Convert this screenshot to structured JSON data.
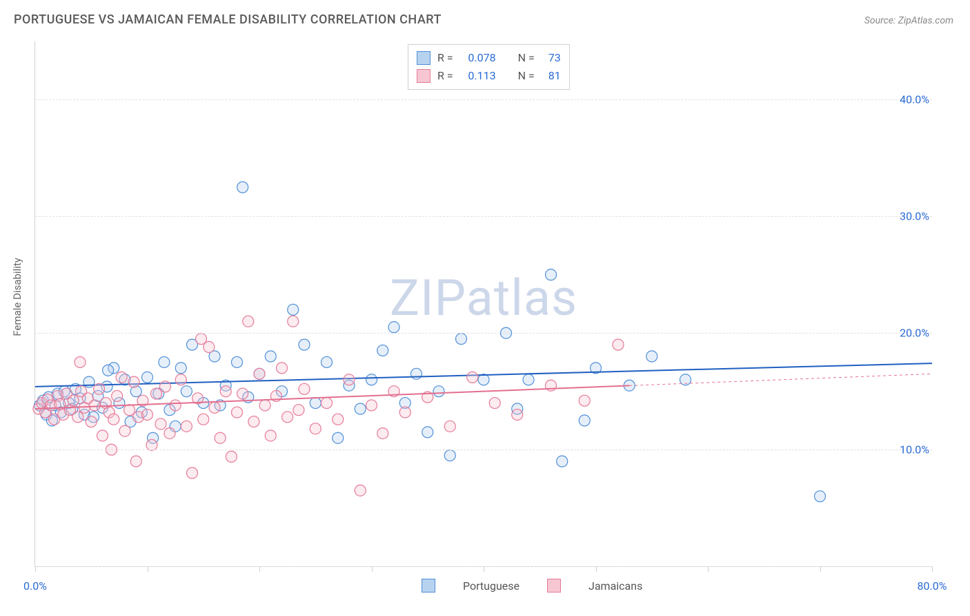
{
  "title": "PORTUGUESE VS JAMAICAN FEMALE DISABILITY CORRELATION CHART",
  "source_prefix": "Source: ",
  "source_name": "ZipAtlas.com",
  "watermark": "ZIPatlas",
  "ylabel": "Female Disability",
  "chart": {
    "type": "scatter",
    "background_color": "#ffffff",
    "grid_color": "#e2e2e2",
    "axis_color": "#d0d0d0",
    "tick_label_color": "#2a6ad6",
    "text_color": "#555555",
    "xlim": [
      0,
      80
    ],
    "ylim": [
      0,
      45
    ],
    "x_ticks": [
      0,
      10,
      20,
      30,
      40,
      50,
      60,
      70,
      80
    ],
    "x_tick_labels": {
      "0": "0.0%",
      "80": "80.0%"
    },
    "y_gridlines": [
      0,
      10,
      20,
      30,
      40
    ],
    "y_tick_labels": {
      "10": "10.0%",
      "20": "20.0%",
      "30": "30.0%",
      "40": "40.0%"
    },
    "marker_radius": 8,
    "line_width": 2,
    "series": [
      {
        "name": "Portuguese",
        "label": "Portuguese",
        "fill": "#b7d2ef",
        "stroke": "#4f8fd9",
        "line_color": "#1f5fc0",
        "r": "0.078",
        "n": "73",
        "trend": {
          "y0": 15.4,
          "y1": 17.4,
          "xsolid_end": 80
        },
        "points": [
          [
            0.4,
            13.8
          ],
          [
            0.7,
            14.2
          ],
          [
            1.0,
            13.0
          ],
          [
            1.2,
            14.5
          ],
          [
            1.5,
            12.5
          ],
          [
            1.8,
            13.8
          ],
          [
            2.0,
            14.8
          ],
          [
            2.3,
            13.2
          ],
          [
            2.6,
            15.0
          ],
          [
            3.0,
            14.0
          ],
          [
            3.3,
            13.5
          ],
          [
            3.6,
            15.2
          ],
          [
            4.0,
            14.4
          ],
          [
            4.4,
            13.0
          ],
          [
            4.8,
            15.8
          ],
          [
            5.2,
            12.8
          ],
          [
            5.6,
            14.6
          ],
          [
            6.0,
            13.6
          ],
          [
            6.4,
            15.4
          ],
          [
            7.0,
            17.0
          ],
          [
            7.5,
            14.0
          ],
          [
            8.0,
            16.0
          ],
          [
            8.5,
            12.4
          ],
          [
            9.0,
            15.0
          ],
          [
            9.5,
            13.2
          ],
          [
            10.0,
            16.2
          ],
          [
            10.5,
            11.0
          ],
          [
            11.0,
            14.8
          ],
          [
            11.5,
            17.5
          ],
          [
            12.0,
            13.4
          ],
          [
            13.0,
            17.0
          ],
          [
            13.5,
            15.0
          ],
          [
            14.0,
            19.0
          ],
          [
            15.0,
            14.0
          ],
          [
            16.0,
            18.0
          ],
          [
            16.5,
            13.8
          ],
          [
            17.0,
            15.5
          ],
          [
            18.0,
            17.5
          ],
          [
            18.5,
            32.5
          ],
          [
            19.0,
            14.5
          ],
          [
            20.0,
            16.5
          ],
          [
            21.0,
            18.0
          ],
          [
            22.0,
            15.0
          ],
          [
            23.0,
            22.0
          ],
          [
            24.0,
            19.0
          ],
          [
            25.0,
            14.0
          ],
          [
            26.0,
            17.5
          ],
          [
            27.0,
            11.0
          ],
          [
            28.0,
            15.5
          ],
          [
            29.0,
            13.5
          ],
          [
            30.0,
            16.0
          ],
          [
            31.0,
            18.5
          ],
          [
            32.0,
            20.5
          ],
          [
            33.0,
            14.0
          ],
          [
            34.0,
            16.5
          ],
          [
            35.0,
            11.5
          ],
          [
            36.0,
            15.0
          ],
          [
            37.0,
            9.5
          ],
          [
            38.0,
            19.5
          ],
          [
            40.0,
            16.0
          ],
          [
            42.0,
            20.0
          ],
          [
            43.0,
            13.5
          ],
          [
            44.0,
            16.0
          ],
          [
            46.0,
            25.0
          ],
          [
            47.0,
            9.0
          ],
          [
            49.0,
            12.5
          ],
          [
            50.0,
            17.0
          ],
          [
            53.0,
            15.5
          ],
          [
            55.0,
            18.0
          ],
          [
            58.0,
            16.0
          ],
          [
            70.0,
            6.0
          ],
          [
            6.5,
            16.8
          ],
          [
            12.5,
            12.0
          ]
        ]
      },
      {
        "name": "Jamaicans",
        "label": "Jamaicans",
        "fill": "#f6c7d2",
        "stroke": "#e67a98",
        "line_color": "#e36f8f",
        "r": "0.113",
        "n": "81",
        "trend": {
          "y0": 13.5,
          "y1": 16.5,
          "xsolid_end": 53
        },
        "points": [
          [
            0.3,
            13.5
          ],
          [
            0.6,
            14.0
          ],
          [
            0.9,
            13.2
          ],
          [
            1.1,
            14.3
          ],
          [
            1.4,
            13.8
          ],
          [
            1.7,
            12.6
          ],
          [
            2.0,
            14.6
          ],
          [
            2.2,
            13.9
          ],
          [
            2.5,
            13.0
          ],
          [
            2.8,
            14.8
          ],
          [
            3.1,
            13.4
          ],
          [
            3.4,
            14.2
          ],
          [
            3.8,
            12.8
          ],
          [
            4.1,
            15.0
          ],
          [
            4.4,
            13.6
          ],
          [
            4.7,
            14.4
          ],
          [
            5.0,
            12.4
          ],
          [
            5.3,
            13.8
          ],
          [
            5.7,
            15.2
          ],
          [
            6.0,
            11.2
          ],
          [
            6.3,
            14.0
          ],
          [
            6.6,
            13.2
          ],
          [
            7.0,
            12.6
          ],
          [
            7.3,
            14.6
          ],
          [
            7.7,
            16.2
          ],
          [
            8.0,
            11.6
          ],
          [
            8.4,
            13.4
          ],
          [
            8.8,
            15.8
          ],
          [
            9.2,
            12.8
          ],
          [
            9.6,
            14.2
          ],
          [
            10.0,
            13.0
          ],
          [
            10.4,
            10.4
          ],
          [
            10.8,
            14.8
          ],
          [
            11.2,
            12.2
          ],
          [
            11.6,
            15.4
          ],
          [
            12.0,
            11.4
          ],
          [
            12.5,
            13.8
          ],
          [
            13.0,
            16.0
          ],
          [
            13.5,
            12.0
          ],
          [
            14.0,
            8.0
          ],
          [
            14.5,
            14.4
          ],
          [
            15.0,
            12.6
          ],
          [
            15.5,
            18.8
          ],
          [
            16.0,
            13.6
          ],
          [
            16.5,
            11.0
          ],
          [
            17.0,
            15.0
          ],
          [
            17.5,
            9.4
          ],
          [
            18.0,
            13.2
          ],
          [
            18.5,
            14.8
          ],
          [
            19.0,
            21.0
          ],
          [
            19.5,
            12.4
          ],
          [
            20.0,
            16.5
          ],
          [
            20.5,
            13.8
          ],
          [
            21.0,
            11.2
          ],
          [
            21.5,
            14.6
          ],
          [
            22.0,
            17.0
          ],
          [
            22.5,
            12.8
          ],
          [
            23.0,
            21.0
          ],
          [
            23.5,
            13.4
          ],
          [
            24.0,
            15.2
          ],
          [
            25.0,
            11.8
          ],
          [
            26.0,
            14.0
          ],
          [
            27.0,
            12.6
          ],
          [
            28.0,
            16.0
          ],
          [
            29.0,
            6.5
          ],
          [
            30.0,
            13.8
          ],
          [
            31.0,
            11.4
          ],
          [
            32.0,
            15.0
          ],
          [
            33.0,
            13.2
          ],
          [
            35.0,
            14.5
          ],
          [
            37.0,
            12.0
          ],
          [
            39.0,
            16.2
          ],
          [
            41.0,
            14.0
          ],
          [
            43.0,
            13.0
          ],
          [
            46.0,
            15.5
          ],
          [
            49.0,
            14.2
          ],
          [
            52.0,
            19.0
          ],
          [
            4.0,
            17.5
          ],
          [
            9.0,
            9.0
          ],
          [
            6.8,
            10.0
          ],
          [
            14.8,
            19.5
          ]
        ]
      }
    ]
  },
  "legend": {
    "r_label": "R =",
    "n_label": "N ="
  }
}
